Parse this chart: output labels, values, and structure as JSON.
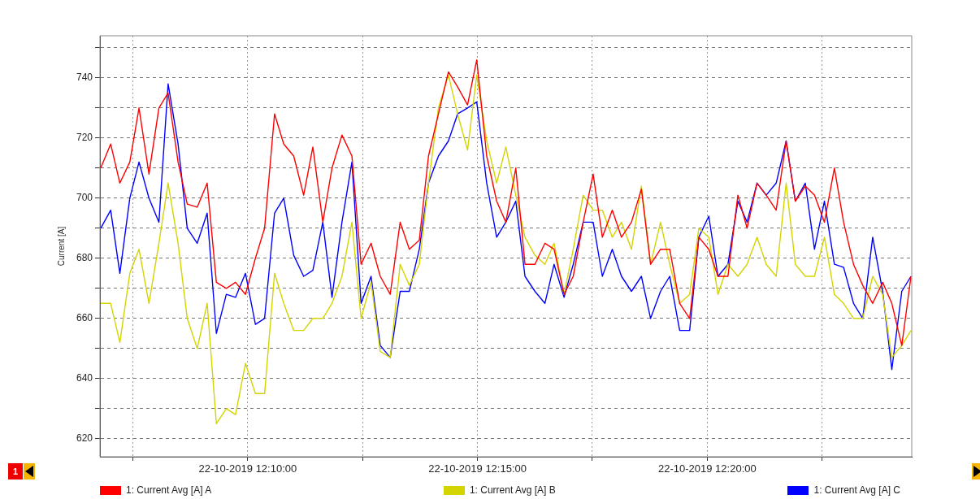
{
  "chart_data": {
    "type": "line",
    "ylabel": "Current [A]",
    "annotations": [
      "1"
    ],
    "x": [
      "2019-10-22T12:06:48",
      "2019-10-22T12:07:01",
      "2019-10-22T12:07:13",
      "2019-10-22T12:07:26",
      "2019-10-22T12:07:38",
      "2019-10-22T12:07:51",
      "2019-10-22T12:08:04",
      "2019-10-22T12:08:16",
      "2019-10-22T12:08:29",
      "2019-10-22T12:08:41",
      "2019-10-22T12:08:54",
      "2019-10-22T12:09:07",
      "2019-10-22T12:09:19",
      "2019-10-22T12:09:32",
      "2019-10-22T12:09:44",
      "2019-10-22T12:09:57",
      "2019-10-22T12:10:10",
      "2019-10-22T12:10:22",
      "2019-10-22T12:10:35",
      "2019-10-22T12:10:47",
      "2019-10-22T12:11:00",
      "2019-10-22T12:11:13",
      "2019-10-22T12:11:25",
      "2019-10-22T12:11:38",
      "2019-10-22T12:11:50",
      "2019-10-22T12:12:03",
      "2019-10-22T12:12:16",
      "2019-10-22T12:12:28",
      "2019-10-22T12:12:41",
      "2019-10-22T12:12:53",
      "2019-10-22T12:13:06",
      "2019-10-22T12:13:19",
      "2019-10-22T12:13:31",
      "2019-10-22T12:13:44",
      "2019-10-22T12:13:56",
      "2019-10-22T12:14:09",
      "2019-10-22T12:14:22",
      "2019-10-22T12:14:34",
      "2019-10-22T12:14:47",
      "2019-10-22T12:14:59",
      "2019-10-22T12:15:12",
      "2019-10-22T12:15:25",
      "2019-10-22T12:15:37",
      "2019-10-22T12:15:50",
      "2019-10-22T12:16:02",
      "2019-10-22T12:16:15",
      "2019-10-22T12:16:28",
      "2019-10-22T12:16:40",
      "2019-10-22T12:16:53",
      "2019-10-22T12:17:05",
      "2019-10-22T12:17:18",
      "2019-10-22T12:17:31",
      "2019-10-22T12:17:43",
      "2019-10-22T12:17:56",
      "2019-10-22T12:18:08",
      "2019-10-22T12:18:21",
      "2019-10-22T12:18:34",
      "2019-10-22T12:18:46",
      "2019-10-22T12:18:59",
      "2019-10-22T12:19:11",
      "2019-10-22T12:19:24",
      "2019-10-22T12:19:37",
      "2019-10-22T12:19:49",
      "2019-10-22T12:20:02",
      "2019-10-22T12:20:14",
      "2019-10-22T12:20:27",
      "2019-10-22T12:20:40",
      "2019-10-22T12:20:52",
      "2019-10-22T12:21:05",
      "2019-10-22T12:21:17",
      "2019-10-22T12:21:30",
      "2019-10-22T12:21:43",
      "2019-10-22T12:21:55",
      "2019-10-22T12:22:08",
      "2019-10-22T12:22:20",
      "2019-10-22T12:22:33",
      "2019-10-22T12:22:46",
      "2019-10-22T12:22:58",
      "2019-10-22T12:23:11",
      "2019-10-22T12:23:23",
      "2019-10-22T12:23:36",
      "2019-10-22T12:23:49",
      "2019-10-22T12:24:01",
      "2019-10-22T12:24:14",
      "2019-10-22T12:24:26"
    ],
    "series": [
      {
        "name": "1: Current Avg [A] A",
        "color": "#ff0000",
        "values": [
          710,
          718,
          705,
          712,
          730,
          708,
          730,
          735,
          712,
          698,
          697,
          705,
          672,
          670,
          672,
          668,
          680,
          690,
          728,
          718,
          714,
          701,
          717,
          692,
          710,
          721,
          714,
          678,
          685,
          674,
          668,
          692,
          683,
          686,
          714,
          728,
          742,
          737,
          731,
          746,
          714,
          699,
          692,
          710,
          678,
          678,
          685,
          683,
          668,
          674,
          692,
          708,
          687,
          696,
          687,
          692,
          703,
          678,
          683,
          683,
          665,
          660,
          687,
          683,
          674,
          674,
          701,
          690,
          705,
          701,
          696,
          719,
          699,
          704,
          701,
          692,
          710,
          692,
          678,
          671,
          665,
          672,
          665,
          651,
          674
        ]
      },
      {
        "name": "1: Current Avg [A] B",
        "color": "#d4d400",
        "values": [
          665,
          665,
          652,
          675,
          683,
          665,
          685,
          705,
          685,
          660,
          650,
          665,
          625,
          630,
          628,
          645,
          635,
          635,
          675,
          665,
          656,
          656,
          660,
          660,
          665,
          674,
          692,
          660,
          672,
          649,
          647,
          678,
          671,
          678,
          705,
          730,
          741,
          728,
          716,
          741,
          719,
          705,
          717,
          701,
          687,
          681,
          678,
          685,
          668,
          683,
          701,
          696,
          696,
          687,
          692,
          683,
          704,
          678,
          692,
          678,
          665,
          668,
          690,
          687,
          668,
          678,
          674,
          678,
          687,
          678,
          674,
          705,
          678,
          674,
          674,
          687,
          668,
          665,
          660,
          660,
          674,
          668,
          647,
          651,
          656
        ]
      },
      {
        "name": "1: Current Avg [A] C",
        "color": "#0000ff",
        "values": [
          690,
          696,
          675,
          700,
          712,
          700,
          692,
          738,
          718,
          690,
          685,
          695,
          655,
          668,
          667,
          675,
          658,
          660,
          695,
          700,
          681,
          674,
          676,
          692,
          667,
          692,
          712,
          665,
          674,
          651,
          647,
          669,
          669,
          683,
          705,
          714,
          719,
          728,
          730,
          732,
          705,
          687,
          692,
          699,
          674,
          669,
          665,
          678,
          667,
          678,
          692,
          692,
          674,
          683,
          674,
          669,
          674,
          660,
          669,
          674,
          656,
          656,
          687,
          694,
          674,
          678,
          699,
          692,
          705,
          701,
          705,
          719,
          699,
          705,
          683,
          699,
          678,
          677,
          665,
          660,
          687,
          669,
          643,
          669,
          674
        ]
      }
    ],
    "xlim": [
      "2019-10-22T12:06:47",
      "2019-10-22T12:24:27"
    ],
    "xticks": [
      {
        "value": "2019-10-22T12:07:30",
        "label": null
      },
      {
        "value": "2019-10-22T12:10",
        "label": "22-10-2019 12:10:00"
      },
      {
        "value": "2019-10-22T12:12:30",
        "label": null
      },
      {
        "value": "2019-10-22T12:15",
        "label": "22-10-2019 12:15:00"
      },
      {
        "value": "2019-10-22T12:17:30",
        "label": null
      },
      {
        "value": "2019-10-22T12:20",
        "label": "22-10-2019 12:20:00"
      },
      {
        "value": "2019-10-22T12:22:30",
        "label": null
      }
    ],
    "ylim": [
      614,
      754
    ],
    "yticks": [
      620,
      {
        "value": 630,
        "label": null
      },
      640,
      {
        "value": 650,
        "label": null
      },
      660,
      {
        "value": 670,
        "label": null
      },
      680,
      {
        "value": 690,
        "label": null
      },
      700,
      {
        "value": 710,
        "label": null
      },
      720,
      {
        "value": 730,
        "label": null
      },
      740,
      {
        "value": 750,
        "label": null
      }
    ],
    "grid": true,
    "legend": "bottom",
    "marker": "none"
  }
}
